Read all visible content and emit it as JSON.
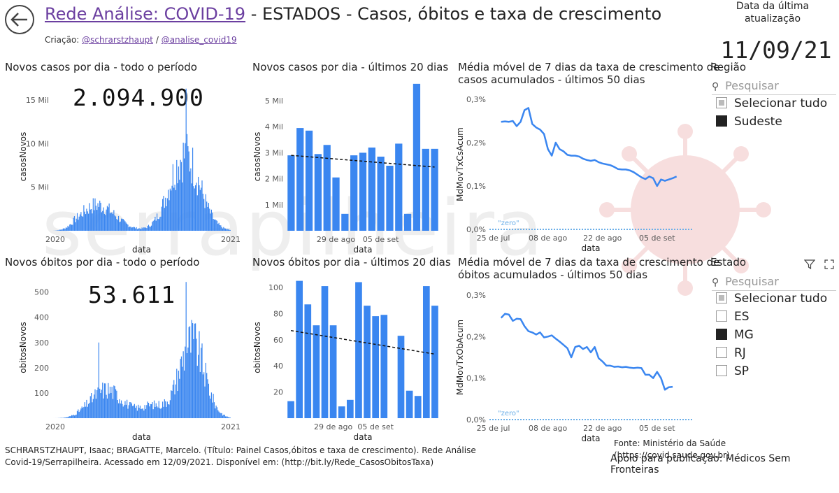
{
  "header": {
    "title_link": "Rede Análise: COVID-19",
    "title_rest": " - ESTADOS - Casos, óbitos e taxa de crescimento",
    "credits_label": "Criação:",
    "credits_a": "@schrarstzhaupt",
    "credits_sep": "/",
    "credits_b": "@analise_covid19",
    "update_label_1": "Data da última",
    "update_label_2": "atualização",
    "update_date": "11/09/21"
  },
  "watermark": "serrapilheira",
  "panels": {
    "cases_all": {
      "title": "Novos casos por dia - todo o período",
      "total": "2.094.900",
      "ylabel": "casosNovos",
      "xlabel": "data",
      "yticks": [
        "5 Mil",
        "10 Mil",
        "15 Mil"
      ],
      "xticks": [
        "2020",
        "2021"
      ]
    },
    "cases_20": {
      "title": "Novos casos por dia - últimos 20 dias",
      "ylabel": "casosNovos",
      "xlabel": "data",
      "yticks": [
        "1 Mil",
        "2 Mil",
        "3 Mil",
        "4 Mil",
        "5 Mil"
      ],
      "xticks": [
        "29 de ago",
        "05 de set"
      ]
    },
    "cases_rate": {
      "title_1": "Média móvel de 7 dias da taxa de crescimento de",
      "title_2": "casos acumulados - últimos 50 dias",
      "ylabel": "MdMovTxCsAcum",
      "xlabel": "data",
      "yticks": [
        "0,0%",
        "0,1%",
        "0,2%",
        "0,3%"
      ],
      "xticks": [
        "25 de jul",
        "08 de ago",
        "22 de ago",
        "05 de set"
      ],
      "zero_label": "\"zero\""
    },
    "deaths_all": {
      "title": "Novos óbitos por dia - todo o período",
      "total": "53.611",
      "ylabel": "obitosNovos",
      "xlabel": "data",
      "yticks": [
        "100",
        "200",
        "300",
        "400",
        "500"
      ],
      "xticks": [
        "2020",
        "2021"
      ]
    },
    "deaths_20": {
      "title": "Novos óbitos por dia - últimos 20 dias",
      "ylabel": "obitosNovos",
      "xlabel": "data",
      "yticks": [
        "20",
        "40",
        "60",
        "80",
        "100"
      ],
      "xticks": [
        "29 de ago",
        "05 de set"
      ]
    },
    "deaths_rate": {
      "title_1": "Média móvel de 7 dias da taxa de crescimento de",
      "title_2": "óbitos acumulados - últimos 50 dias",
      "ylabel": "MdMovTxObAcum",
      "xlabel": "data",
      "yticks": [
        "0,0%",
        "0,1%",
        "0,2%",
        "0,3%"
      ],
      "xticks": [
        "25 de jul",
        "08 de ago",
        "22 de ago",
        "05 de set"
      ],
      "zero_label": "\"zero\""
    }
  },
  "slicers": {
    "regiao": {
      "title": "Região",
      "search_placeholder": "Pesquisar",
      "items": [
        {
          "label": "Selecionar tudo",
          "state": "partial"
        },
        {
          "label": "Sudeste",
          "state": "on"
        }
      ]
    },
    "estado": {
      "title": "Estado",
      "search_placeholder": "Pesquisar",
      "items": [
        {
          "label": "Selecionar tudo",
          "state": "partial"
        },
        {
          "label": "ES",
          "state": "off"
        },
        {
          "label": "MG",
          "state": "on"
        },
        {
          "label": "RJ",
          "state": "off"
        },
        {
          "label": "SP",
          "state": "off"
        }
      ]
    }
  },
  "footer": {
    "citation_1": "SCHRARSTZHAUPT, Isaac; BRAGATTE, Marcelo. (Título: Painel Casos,óbitos e taxa de crescimento). Rede Análise",
    "citation_2": "Covid-19/Serrapilheira. Acessado em 12/09/2021. Disponível em: (http://bit.ly/Rede_CasosObitosTaxa)",
    "source": "Fonte: Ministério da Saúde (https://covid.saude.gov.br)",
    "support": "Apoio para publicação: Médicos Sem Fronteiras"
  },
  "colors": {
    "bar": "#3a86f0",
    "line": "#3a86f0",
    "zero": "#6aaee8",
    "trend": "#111111"
  },
  "chart_data": [
    {
      "id": "cases_20",
      "type": "bar",
      "title": "Novos casos por dia - últimos 20 dias",
      "xlabel": "data",
      "ylabel": "casosNovos",
      "ylim": [
        0,
        5700
      ],
      "values": [
        2900,
        3950,
        3850,
        2950,
        3300,
        2050,
        650,
        2900,
        3000,
        3200,
        2850,
        2500,
        3350,
        650,
        5650,
        3150,
        3150
      ],
      "trend": [
        2900,
        2450
      ]
    },
    {
      "id": "deaths_20",
      "type": "bar",
      "title": "Novos óbitos por dia - últimos 20 dias",
      "xlabel": "data",
      "ylabel": "obitosNovos",
      "ylim": [
        0,
        108
      ],
      "values": [
        13,
        105,
        87,
        71,
        101,
        71,
        9,
        14,
        104,
        86,
        78,
        79,
        63,
        21,
        17,
        101,
        86
      ],
      "gaps": [
        12
      ],
      "trend": [
        67,
        49
      ]
    },
    {
      "id": "cases_rate",
      "type": "line",
      "xlabel": "data",
      "ylabel": "MdMovTxCsAcum",
      "ylim": [
        0,
        0.3
      ],
      "values": [
        0.248,
        0.249,
        0.248,
        0.25,
        0.238,
        0.248,
        0.275,
        0.28,
        0.243,
        0.235,
        0.23,
        0.22,
        0.185,
        0.17,
        0.2,
        0.185,
        0.18,
        0.172,
        0.17,
        0.17,
        0.168,
        0.163,
        0.16,
        0.158,
        0.16,
        0.155,
        0.152,
        0.15,
        0.148,
        0.144,
        0.139,
        0.138,
        0.138,
        0.136,
        0.132,
        0.126,
        0.12,
        0.116,
        0.122,
        0.118,
        0.1,
        0.115,
        0.112,
        0.115,
        0.118,
        0.122
      ]
    },
    {
      "id": "deaths_rate",
      "type": "line",
      "xlabel": "data",
      "ylabel": "MdMovTxObAcum",
      "ylim": [
        0,
        0.3
      ],
      "values": [
        0.245,
        0.255,
        0.253,
        0.238,
        0.243,
        0.242,
        0.225,
        0.213,
        0.21,
        0.205,
        0.21,
        0.198,
        0.2,
        0.203,
        0.195,
        0.188,
        0.18,
        0.172,
        0.15,
        0.175,
        0.178,
        0.17,
        0.175,
        0.162,
        0.175,
        0.148,
        0.14,
        0.13,
        0.13,
        0.127,
        0.128,
        0.126,
        0.127,
        0.125,
        0.124,
        0.125,
        0.124,
        0.108,
        0.108,
        0.1,
        0.115,
        0.1,
        0.072,
        0.078,
        0.079
      ]
    },
    {
      "id": "cases_all",
      "type": "bar",
      "xlabel": "data",
      "ylabel": "casosNovos",
      "ylim": [
        0,
        17000
      ],
      "peak": 16300,
      "total": "2.094.900"
    },
    {
      "id": "deaths_all",
      "type": "bar",
      "xlabel": "data",
      "ylabel": "obitosNovos",
      "ylim": [
        0,
        560
      ],
      "peak": 540,
      "total": "53.611"
    }
  ]
}
